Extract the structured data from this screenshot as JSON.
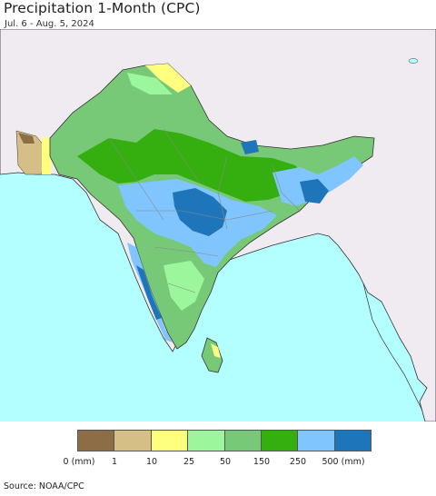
{
  "title": "Precipitation 1-Month (CPC)",
  "subtitle": "Jul. 6 - Aug. 5, 2024",
  "source": "Source: NOAA/CPC",
  "colors": {
    "ocean": "#b3ffff",
    "land_outside": "#efebf0",
    "border": "#333333",
    "state_border": "#8a8a8a"
  },
  "legend": {
    "colors": [
      "#8c6d46",
      "#d6bf86",
      "#ffff7f",
      "#9cf79c",
      "#77c977",
      "#35ae0f",
      "#80c5fd",
      "#1e75b9"
    ],
    "labels": [
      "0 (mm)",
      "1",
      "10",
      "25",
      "50",
      "150",
      "250",
      "500 (mm)"
    ]
  }
}
